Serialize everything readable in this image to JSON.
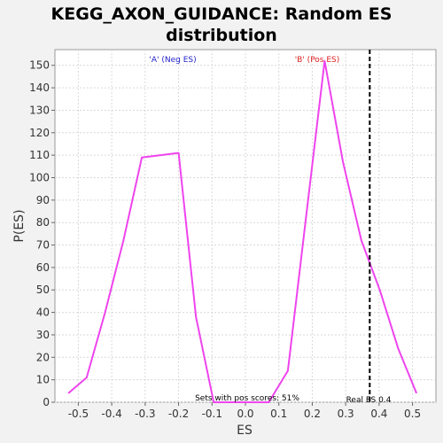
{
  "chart_data": {
    "type": "line",
    "title_line1": "KEGG_AXON_GUIDANCE: Random ES",
    "title_line2": "distribution",
    "xlabel": "ES",
    "ylabel": "P(ES)",
    "xlim": [
      -0.57,
      0.57
    ],
    "ylim": [
      0,
      157
    ],
    "xticks": [
      -0.5,
      -0.4,
      -0.3,
      -0.2,
      -0.1,
      0.0,
      0.1,
      0.2,
      0.3,
      0.4,
      0.5
    ],
    "xtick_labels": [
      "-0.5",
      "-0.4",
      "-0.3",
      "-0.2",
      "-0.1",
      "0.0",
      "0.1",
      "0.2",
      "0.3",
      "0.4",
      "0.5"
    ],
    "yticks": [
      0,
      10,
      20,
      30,
      40,
      50,
      60,
      70,
      80,
      90,
      100,
      110,
      120,
      130,
      140,
      150
    ],
    "ytick_labels": [
      "0",
      "10",
      "20",
      "30",
      "40",
      "50",
      "60",
      "70",
      "80",
      "90",
      "100",
      "110",
      "120",
      "130",
      "140",
      "150"
    ],
    "grid": true,
    "series": [
      {
        "color": "#ee44ee",
        "x": [
          -0.53,
          -0.475,
          -0.42,
          -0.365,
          -0.31,
          -0.2,
          -0.148,
          -0.095,
          -0.04,
          0.015,
          0.07,
          0.127,
          0.182,
          0.237,
          0.292,
          0.347,
          0.402,
          0.457,
          0.512
        ],
        "y": [
          4,
          11,
          40,
          72,
          109,
          111,
          38,
          0,
          0,
          0,
          0,
          14,
          83,
          152,
          107,
          72,
          50,
          24,
          4
        ]
      }
    ],
    "real_es": 0.372,
    "annotations": {
      "neg_label": "'A' (Neg ES)",
      "neg_color": "#2222cc",
      "pos_label": "'B' (Pos ES)",
      "pos_color": "#dd2222",
      "sets_text": "Sets with pos scores: 51%",
      "real_es_text": "Real ES 0.4"
    }
  }
}
